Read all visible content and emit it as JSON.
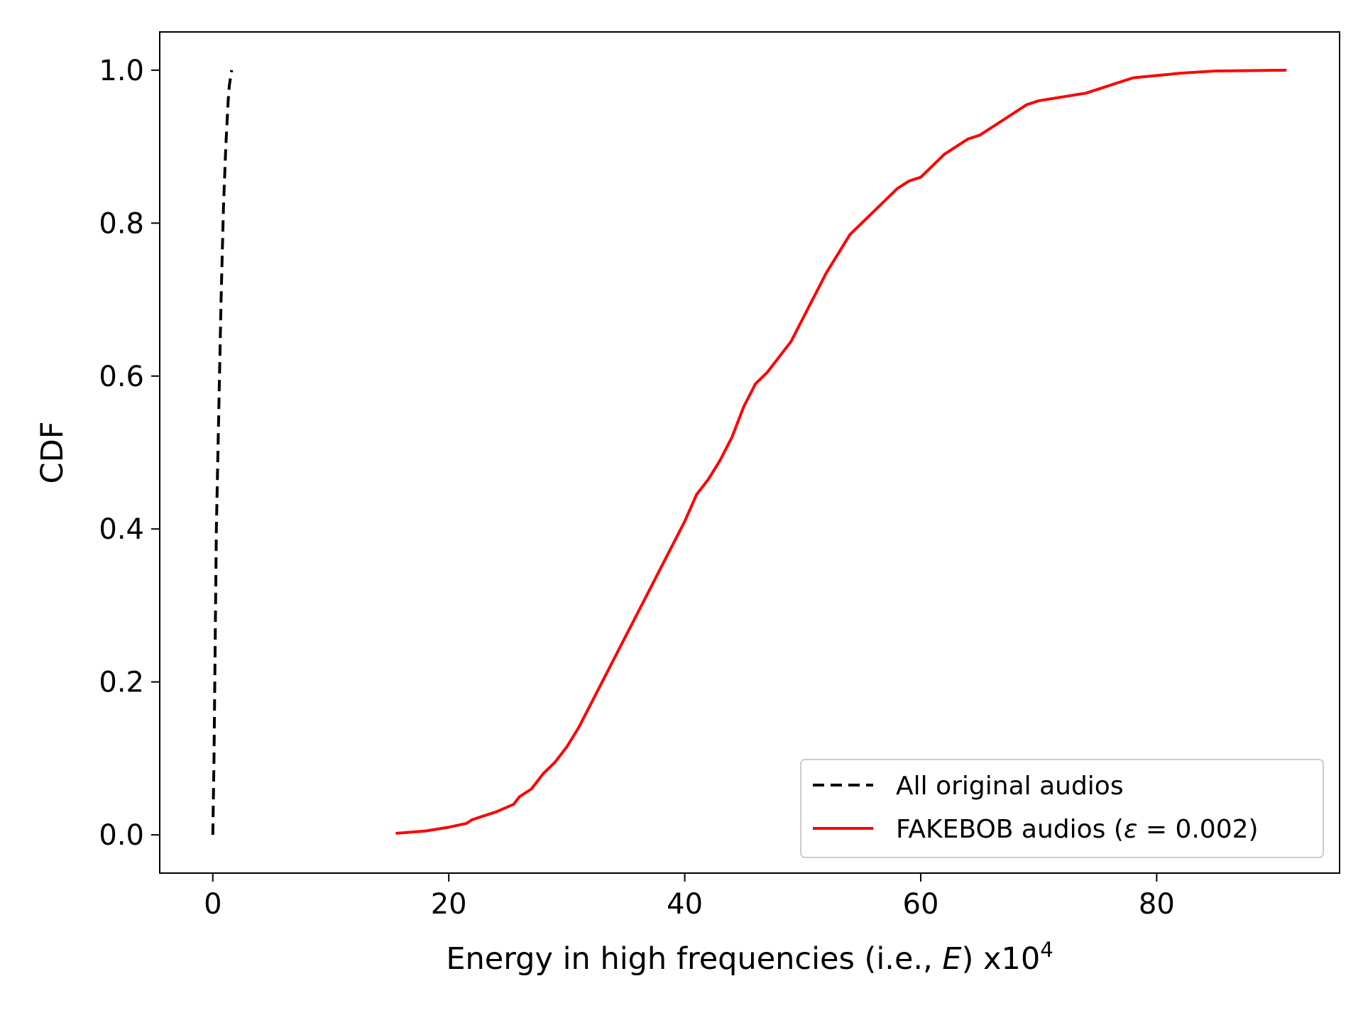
{
  "chart_data": {
    "type": "line",
    "xlabel": {
      "prefix": "Energy in high frequencies (i.e., ",
      "variable": "E",
      "suffix": ") x10",
      "exponent": "4"
    },
    "ylabel": "CDF",
    "xlim": [
      -4.5,
      95.5
    ],
    "ylim": [
      -0.05,
      1.05
    ],
    "xticks": [
      0,
      20,
      40,
      60,
      80
    ],
    "xtick_labels": [
      "0",
      "20",
      "40",
      "60",
      "80"
    ],
    "yticks": [
      0.0,
      0.2,
      0.4,
      0.6,
      0.8,
      1.0
    ],
    "ytick_labels": [
      "0.0",
      "0.2",
      "0.4",
      "0.6",
      "0.8",
      "1.0"
    ],
    "grid": false,
    "legend_position": "lower-right",
    "series": [
      {
        "name": "All original audios",
        "color": "#000000",
        "style": "dashed",
        "x": [
          0.0,
          0.1,
          0.2,
          0.3,
          0.5,
          0.7,
          0.9,
          1.1,
          1.3,
          1.4,
          1.6
        ],
        "y": [
          0.0,
          0.1,
          0.25,
          0.4,
          0.55,
          0.7,
          0.82,
          0.9,
          0.96,
          0.98,
          1.0
        ]
      },
      {
        "name": "FAKEBOB audios (ε = 0.002)",
        "legend_label": {
          "prefix": "FAKEBOB audios (",
          "variable": "ε",
          "suffix": " = 0.002)"
        },
        "color": "#ff0000",
        "style": "solid",
        "x": [
          15.5,
          18,
          20,
          21.5,
          22,
          23,
          24,
          25.5,
          26,
          27,
          28,
          29,
          30,
          31,
          32,
          33,
          34,
          35,
          36,
          37,
          38,
          39,
          40,
          41,
          42,
          43,
          44,
          45,
          46,
          47,
          48,
          49,
          50,
          51,
          52,
          53,
          54,
          55,
          56,
          57,
          58,
          59,
          60,
          61,
          62,
          63,
          64,
          65,
          66,
          67,
          68,
          69,
          70,
          72,
          74,
          75,
          77,
          78,
          80,
          82,
          85,
          91
        ],
        "y": [
          0.002,
          0.005,
          0.01,
          0.015,
          0.02,
          0.025,
          0.03,
          0.04,
          0.05,
          0.06,
          0.08,
          0.095,
          0.115,
          0.14,
          0.17,
          0.2,
          0.23,
          0.26,
          0.29,
          0.32,
          0.35,
          0.38,
          0.41,
          0.445,
          0.465,
          0.49,
          0.52,
          0.56,
          0.59,
          0.605,
          0.625,
          0.645,
          0.675,
          0.705,
          0.735,
          0.76,
          0.785,
          0.8,
          0.815,
          0.83,
          0.845,
          0.855,
          0.86,
          0.875,
          0.89,
          0.9,
          0.91,
          0.915,
          0.925,
          0.935,
          0.945,
          0.955,
          0.96,
          0.965,
          0.97,
          0.975,
          0.985,
          0.99,
          0.993,
          0.996,
          0.999,
          1.0
        ]
      }
    ]
  }
}
